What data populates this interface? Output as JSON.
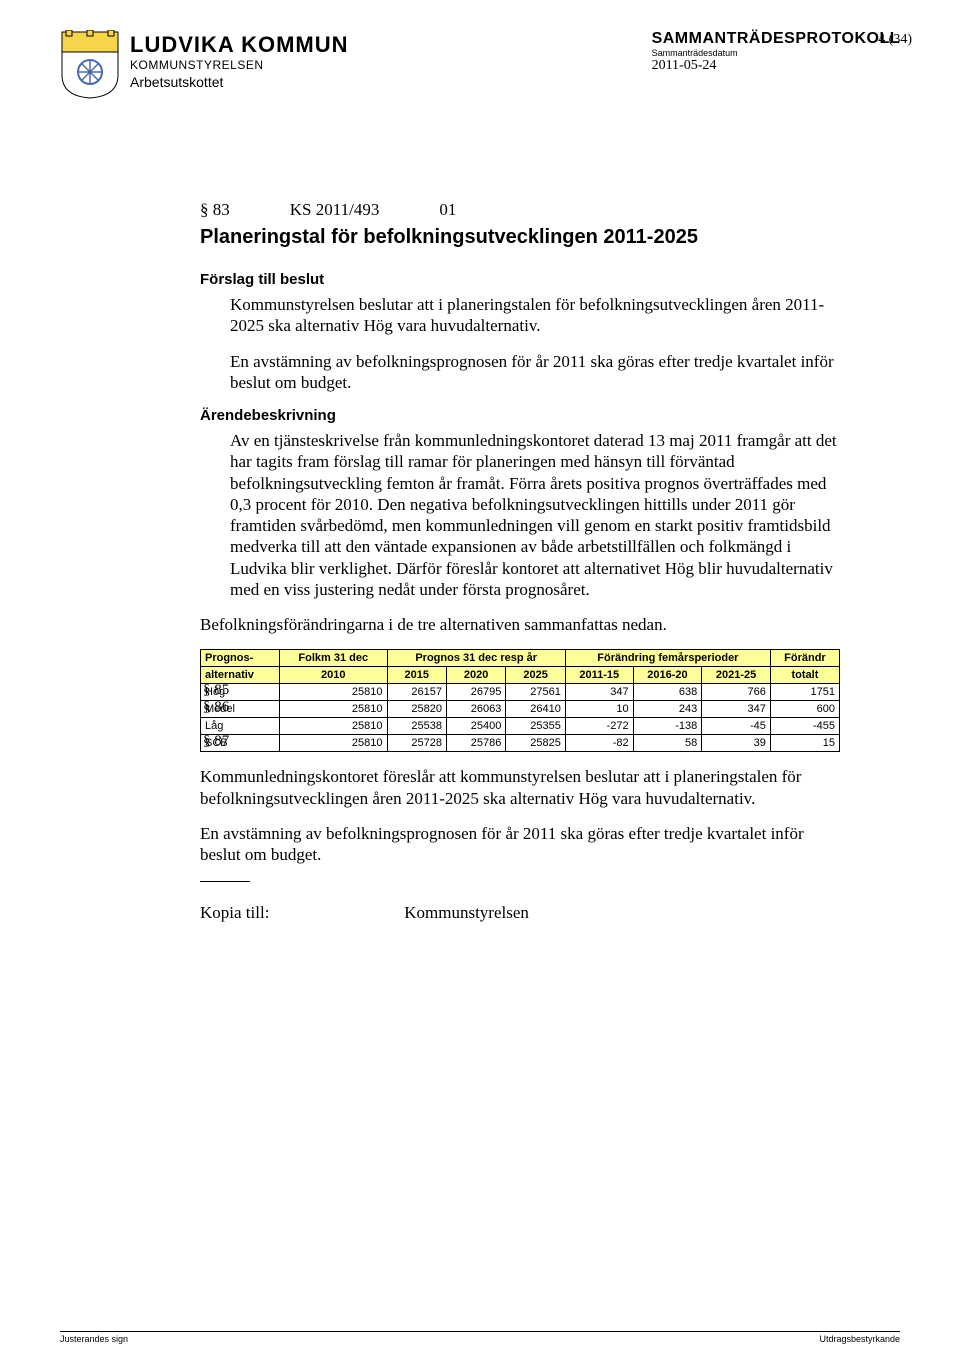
{
  "header": {
    "org": "LUDVIKA KOMMUN",
    "dept": "KOMMUNSTYRELSEN",
    "subdept": "Arbetsutskottet",
    "doc_type": "SAMMANTRÄDESPROTOKOLL",
    "meeting_label": "Sammanträdesdatum",
    "meeting_date": "2011-05-24",
    "page_num": "4 (34)"
  },
  "section": {
    "para_sym": "§ 83",
    "case_ref": "KS 2011/493",
    "code": "01",
    "title": "Planeringstal för befolkningsutvecklingen 2011-2025"
  },
  "proposal_head": "Förslag till beslut",
  "proposal_p1": "Kommunstyrelsen beslutar att i planeringstalen för befolkningsutvecklingen åren 2011-2025 ska alternativ Hög vara huvudalternativ.",
  "proposal_p2": "En avstämning av befolkningsprognosen för år 2011 ska göras efter tredje kvartalet inför beslut om budget.",
  "desc_head": "Ärendebeskrivning",
  "desc_body": "Av en tjänsteskrivelse från kommunledningskontoret daterad 13 maj 2011 framgår att det har tagits fram förslag till ramar för planeringen med hänsyn till förväntad befolkningsutveckling femton år framåt. Förra årets positiva prognos överträffades med 0,3 procent för 2010. Den negativa befolkningsutvecklingen hittills under 2011 gör framtiden svårbedömd, men kommunledningen vill genom en starkt positiv framtidsbild medverka till att den väntade expansionen av både arbetstillfällen och folkmängd i Ludvika blir verklighet. Därför föreslår kontoret att alternativet Hög blir huvudalternativ med en viss justering nedåt under första prognosåret.",
  "summary_line": "Befolkningsförändringarna i de tre alternativen sammanfattas nedan.",
  "section_refs_overlay": [
    "§ 85",
    "§ 86",
    "§ 87"
  ],
  "table": {
    "header_bg": "#ffff99",
    "head_r1": [
      "Prognos-",
      "Folkm 31 dec",
      "Prognos 31 dec resp år",
      "Förändring femårsperioder",
      "Förändr"
    ],
    "head_r2": [
      "alternativ",
      "2010",
      "2015",
      "2020",
      "2025",
      "2011-15",
      "2016-20",
      "2021-25",
      "totalt"
    ],
    "rows": [
      {
        "label": "Hög",
        "cells": [
          "25810",
          "26157",
          "26795",
          "27561",
          "347",
          "638",
          "766",
          "1751"
        ]
      },
      {
        "label": "Medel",
        "cells": [
          "25810",
          "25820",
          "26063",
          "26410",
          "10",
          "243",
          "347",
          "600"
        ]
      },
      {
        "label": "Låg",
        "cells": [
          "25810",
          "25538",
          "25400",
          "25355",
          "-272",
          "-138",
          "-45",
          "-455"
        ]
      },
      {
        "label": "SCB",
        "cells": [
          "25810",
          "25728",
          "25786",
          "25825",
          "-82",
          "58",
          "39",
          "15"
        ]
      }
    ]
  },
  "after_p1": "Kommunledningskontoret föreslår att kommunstyrelsen beslutar att i planeringstalen för befolkningsutvecklingen åren 2011-2025 ska alternativ Hög vara huvudalternativ.",
  "after_p2": "En avstämning av befolkningsprognosen för år 2011 ska göras efter tredje kvartalet inför beslut om budget.",
  "copy_label": "Kopia till:",
  "copy_to": "Kommunstyrelsen",
  "footer": {
    "left": "Justerandes sign",
    "right": "Utdragsbestyrkande"
  },
  "colors": {
    "crest_blue": "#4a6aa8",
    "crest_yellow": "#f7d54a"
  }
}
